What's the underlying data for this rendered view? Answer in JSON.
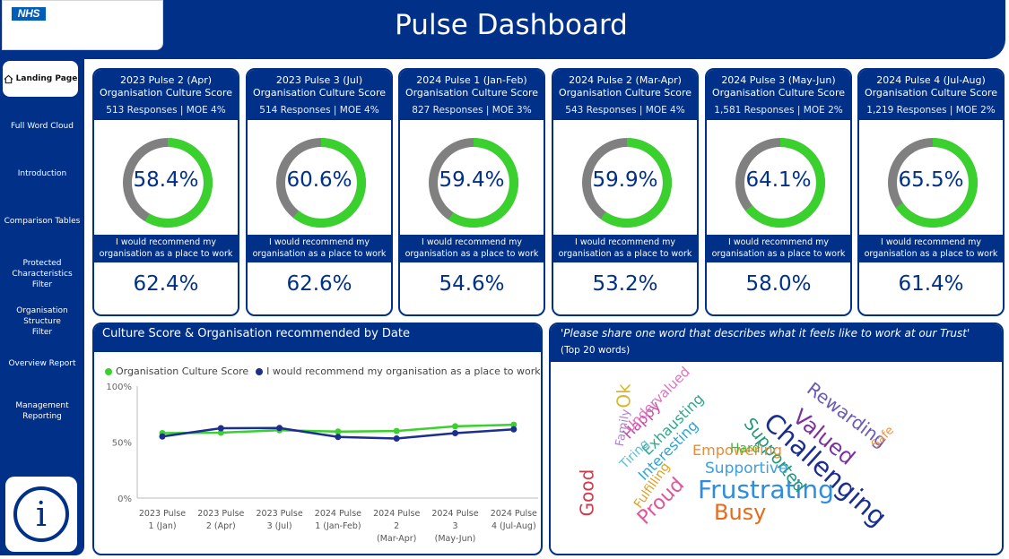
{
  "header": {
    "title": "Pulse Dashboard",
    "logo_text": "NHS"
  },
  "sidebar": {
    "items": [
      {
        "label": "Landing Page"
      },
      {
        "label": "Full Word Cloud"
      },
      {
        "label": "Introduction"
      },
      {
        "label": "Comparison Tables"
      },
      {
        "label": "Protected Characteristics Filter"
      },
      {
        "label": "Organisation Structure Filter"
      },
      {
        "label": "Overview Report"
      },
      {
        "label": "Management Reporting"
      }
    ],
    "info_label": "i"
  },
  "colors": {
    "navy": "#003087",
    "green": "#3ad12e",
    "gray": "#808080",
    "dark_blue": "#1c2e8f"
  },
  "cards": [
    {
      "title": "2023 Pulse 2 (Apr)",
      "subtitle": "Organisation Culture Score",
      "responses": "513 Responses | MOE 4%",
      "culture_score": "58.4%",
      "culture_value": 58.4,
      "recommend_label": "I would recommend my organisation as a place to work",
      "recommend_value": "62.4%"
    },
    {
      "title": "2023 Pulse 3 (Jul)",
      "subtitle": "Organisation Culture Score",
      "responses": "514 Responses | MOE 4%",
      "culture_score": "60.6%",
      "culture_value": 60.6,
      "recommend_label": "I would recommend my organisation as a place to work",
      "recommend_value": "62.6%"
    },
    {
      "title": "2024 Pulse 1 (Jan-Feb)",
      "subtitle": "Organisation Culture Score",
      "responses": "827 Responses | MOE 3%",
      "culture_score": "59.4%",
      "culture_value": 59.4,
      "recommend_label": "I would recommend my organisation as a place to work",
      "recommend_value": "54.6%"
    },
    {
      "title": "2024 Pulse 2 (Mar-Apr)",
      "subtitle": "Organisation Culture Score",
      "responses": "543 Responses | MOE 4%",
      "culture_score": "59.9%",
      "culture_value": 59.9,
      "recommend_label": "I would recommend my organisation as a place to work",
      "recommend_value": "53.2%"
    },
    {
      "title": "2024 Pulse 3 (May-Jun)",
      "subtitle": "Organisation Culture Score",
      "responses": "1,581 Responses | MOE 2%",
      "culture_score": "64.1%",
      "culture_value": 64.1,
      "recommend_label": "I would recommend my organisation as a place to work",
      "recommend_value": "58.0%"
    },
    {
      "title": "2024 Pulse 4 (Jul-Aug)",
      "subtitle": "Organisation Culture Score",
      "responses": "1,219 Responses | MOE 2%",
      "culture_score": "65.5%",
      "culture_value": 65.5,
      "recommend_label": "I would recommend my organisation as a place to work",
      "recommend_value": "61.4%"
    }
  ],
  "line_chart": {
    "title": "Culture Score & Organisation recommended by Date"
  },
  "chart_data": {
    "type": "line",
    "title": "Culture Score & Organisation recommended by Date",
    "categories": [
      [
        "2023 Pulse",
        "1 (Jan)"
      ],
      [
        "2023 Pulse",
        "2 (Apr)"
      ],
      [
        "2023 Pulse",
        "3 (Jul)"
      ],
      [
        "2024 Pulse",
        "1 (Jan-Feb)"
      ],
      [
        "2024 Pulse",
        "2",
        "(Mar-Apr)"
      ],
      [
        "2024 Pulse",
        "3",
        "(May-Jun)"
      ],
      [
        "2024 Pulse",
        "4 (Jul-Aug)"
      ]
    ],
    "series": [
      {
        "name": "Organisation Culture Score",
        "color": "#3ad12e",
        "values": [
          58,
          58.4,
          60.6,
          59.4,
          59.9,
          64.1,
          65.5
        ]
      },
      {
        "name": "I would recommend my organisation as a place to work",
        "color": "#1c2e8f",
        "values": [
          55,
          62.4,
          62.6,
          54.6,
          53.2,
          58.0,
          61.4
        ]
      }
    ],
    "yticks": [
      "100%",
      "50%",
      "0%"
    ],
    "ylim": [
      0,
      100
    ],
    "grid": false,
    "legend": "top-left"
  },
  "word_cloud": {
    "question": "'Please share one word that describes what it feels like to work at our Trust'",
    "subtitle": "(Top 20 words)",
    "words": [
      {
        "text": "Frustrating",
        "color": "#2f8de0"
      },
      {
        "text": "Challenging",
        "color": "#1a2e8f"
      },
      {
        "text": "Busy",
        "color": "#e66b1a"
      },
      {
        "text": "Valued",
        "color": "#7c2fa0"
      },
      {
        "text": "Supported",
        "color": "#1d9a7a"
      },
      {
        "text": "Rewarding",
        "color": "#6a5ab8"
      },
      {
        "text": "Proud",
        "color": "#e0559b"
      },
      {
        "text": "Supportive",
        "color": "#3aa0e0"
      },
      {
        "text": "Empowering",
        "color": "#f08a2e"
      },
      {
        "text": "Exhausting",
        "color": "#2da88a"
      },
      {
        "text": "Interesting",
        "color": "#2aa4d8"
      },
      {
        "text": "Happy",
        "color": "#c04aa0"
      },
      {
        "text": "Undervalued",
        "color": "#e070c0"
      },
      {
        "text": "Fulfilling",
        "color": "#e0a020"
      },
      {
        "text": "Good",
        "color": "#d03a4a"
      },
      {
        "text": "Ok",
        "color": "#d8b830"
      },
      {
        "text": "Hard",
        "color": "#4ab040"
      },
      {
        "text": "Tiring",
        "color": "#58c0d8"
      },
      {
        "text": "Family",
        "color": "#b080d0"
      },
      {
        "text": "Safe",
        "color": "#f09040"
      }
    ]
  }
}
